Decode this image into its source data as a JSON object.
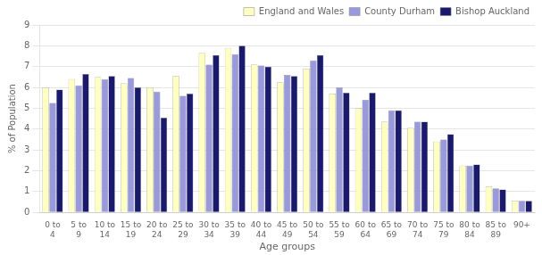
{
  "chart_data": {
    "type": "bar",
    "xlabel": "Age groups",
    "ylabel": "% of Population",
    "categories": [
      "0 to\n4",
      "5 to\n9",
      "10 to\n14",
      "15 to\n19",
      "20 to\n24",
      "25 to\n29",
      "30 to\n34",
      "35 to\n39",
      "40 to\n44",
      "45 to\n49",
      "50 to\n54",
      "55 to\n59",
      "60 to\n64",
      "65 to\n69",
      "70 to\n74",
      "75 to\n79",
      "80 to\n84",
      "85 to\n89",
      "90+"
    ],
    "series": [
      {
        "name": "England and Wales",
        "color": "#ffffc0",
        "values": [
          6.0,
          6.4,
          6.5,
          6.2,
          6.0,
          6.55,
          7.65,
          7.9,
          7.1,
          6.25,
          6.9,
          5.7,
          5.0,
          4.35,
          4.05,
          3.4,
          2.25,
          1.25,
          0.55
        ]
      },
      {
        "name": "County Durham",
        "color": "#9999dd",
        "values": [
          5.25,
          6.1,
          6.4,
          6.45,
          5.8,
          5.6,
          7.1,
          7.6,
          7.05,
          6.6,
          7.3,
          6.0,
          5.4,
          4.9,
          4.35,
          3.5,
          2.25,
          1.15,
          0.55
        ]
      },
      {
        "name": "Bishop Auckland",
        "color": "#191970",
        "values": [
          5.9,
          6.65,
          6.55,
          6.0,
          4.55,
          5.7,
          7.55,
          8.0,
          7.0,
          6.55,
          7.55,
          5.75,
          5.75,
          4.9,
          4.35,
          3.75,
          2.3,
          1.1,
          0.55
        ]
      }
    ],
    "ylim": [
      0,
      9
    ],
    "yticks": [
      0,
      1,
      2,
      3,
      4,
      5,
      6,
      7,
      8,
      9
    ],
    "grid": true,
    "legend": "upper right"
  }
}
